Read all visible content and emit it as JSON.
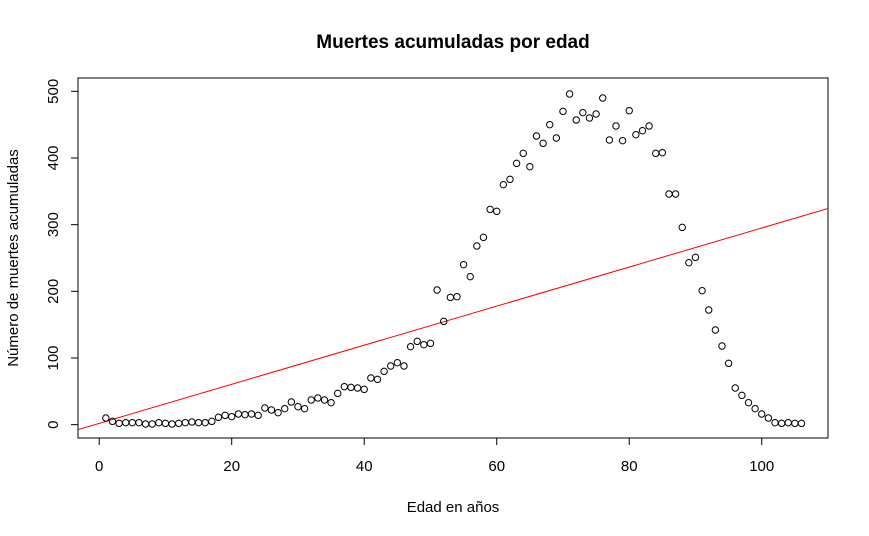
{
  "chart_data": {
    "type": "scatter",
    "title": "Muertes acumuladas por edad",
    "xlabel": "Edad en años",
    "ylabel": "Número de muertes acumuladas",
    "xlim": [
      -3.2,
      110
    ],
    "ylim": [
      -20,
      520
    ],
    "xticks": [
      0,
      20,
      40,
      60,
      80,
      100
    ],
    "yticks": [
      0,
      100,
      200,
      300,
      400,
      500
    ],
    "grid": false,
    "point_color": "#000000",
    "line_color": "#ff0000",
    "series": [
      {
        "x": [
          1,
          2,
          3,
          4,
          5,
          6,
          7,
          8,
          9,
          10,
          11,
          12,
          13,
          14,
          15,
          16,
          17,
          18,
          19,
          20,
          21,
          22,
          23,
          24,
          25,
          26,
          27,
          28,
          29,
          30,
          31,
          32,
          33,
          34,
          35,
          36,
          37,
          38,
          39,
          40,
          41,
          42,
          43,
          44,
          45,
          46,
          47,
          48,
          49,
          50,
          51,
          52,
          53,
          54,
          55,
          56,
          57,
          58,
          59,
          60,
          61,
          62,
          63,
          64,
          65,
          66,
          67,
          68,
          69,
          70,
          71,
          72,
          73,
          74,
          75,
          76,
          77,
          78,
          79,
          80,
          81,
          82,
          83,
          84,
          85,
          86,
          87,
          88,
          89,
          90,
          91,
          92,
          93,
          94,
          95,
          96,
          97,
          98,
          99,
          100,
          101,
          102,
          103,
          104,
          105,
          106
        ],
        "values": [
          10,
          5,
          2,
          3,
          3,
          3,
          1,
          1,
          3,
          2,
          1,
          2,
          3,
          4,
          3,
          3,
          5,
          11,
          14,
          12,
          16,
          15,
          16,
          14,
          25,
          22,
          18,
          24,
          34,
          27,
          24,
          37,
          40,
          37,
          33,
          47,
          57,
          56,
          55,
          53,
          70,
          68,
          80,
          88,
          93,
          88,
          117,
          125,
          120,
          122,
          202,
          155,
          191,
          192,
          240,
          222,
          268,
          281,
          323,
          320,
          360,
          368,
          392,
          407,
          387,
          433,
          422,
          450,
          430,
          470,
          496,
          457,
          468,
          460,
          466,
          490,
          427,
          448,
          426,
          471,
          435,
          441,
          448,
          407,
          408,
          346,
          346,
          296,
          243,
          251,
          201,
          172,
          142,
          118,
          92,
          55,
          44,
          33,
          24,
          16,
          10,
          3,
          2,
          3,
          2,
          2
        ]
      }
    ],
    "trend_line": {
      "intercept": 2,
      "slope": 2.93
    }
  }
}
